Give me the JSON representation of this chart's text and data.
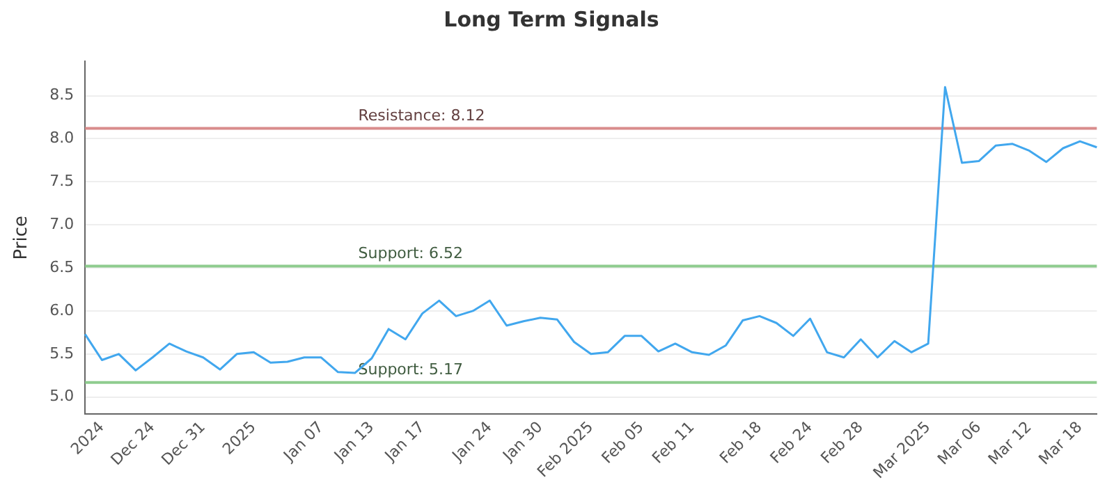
{
  "chart_data": {
    "type": "line",
    "title": "Long Term Signals",
    "ylabel": "Price",
    "categories": [
      null,
      "2024",
      null,
      null,
      "Dec 24",
      null,
      null,
      "Dec 31",
      null,
      null,
      "2025",
      null,
      null,
      null,
      "Jan 07",
      null,
      null,
      "Jan 13",
      null,
      null,
      "Jan 17",
      null,
      null,
      null,
      "Jan 24",
      null,
      null,
      "Jan 30",
      null,
      null,
      "Feb 2025",
      null,
      null,
      "Feb 05",
      null,
      null,
      "Feb 11",
      null,
      null,
      null,
      "Feb 18",
      null,
      null,
      "Feb 24",
      null,
      null,
      "Feb 28",
      null,
      null,
      null,
      "Mar 2025",
      null,
      null,
      "Mar 06",
      null,
      null,
      "Mar 12",
      null,
      null,
      "Mar 18",
      null
    ],
    "series": [
      {
        "color": "#41a7ee",
        "values": [
          5.73,
          5.43,
          5.5,
          5.31,
          5.46,
          5.62,
          5.53,
          5.46,
          5.32,
          5.5,
          5.52,
          5.4,
          5.41,
          5.46,
          5.46,
          5.29,
          5.28,
          5.45,
          5.79,
          5.67,
          5.97,
          6.12,
          5.94,
          6.0,
          6.12,
          5.83,
          5.88,
          5.92,
          5.9,
          5.64,
          5.5,
          5.52,
          5.71,
          5.71,
          5.53,
          5.62,
          5.52,
          5.49,
          5.6,
          5.89,
          5.94,
          5.86,
          5.71,
          5.91,
          5.52,
          5.46,
          5.67,
          5.46,
          5.65,
          5.52,
          5.62,
          8.6,
          7.72,
          7.74,
          7.92,
          7.94,
          7.86,
          7.73,
          7.89,
          7.97,
          7.9
        ]
      }
    ],
    "ylim": [
      4.8,
      8.9
    ],
    "yticks": [
      {
        "value": 5,
        "label": "5.0"
      },
      {
        "value": 5.5,
        "label": "5.5"
      },
      {
        "value": 6,
        "label": "6.0"
      },
      {
        "value": 6.5,
        "label": "6.5"
      },
      {
        "value": 7,
        "label": "7.0"
      },
      {
        "value": 7.5,
        "label": "7.5"
      },
      {
        "value": 8,
        "label": "8.0"
      },
      {
        "value": 8.5,
        "label": "8.5"
      }
    ],
    "ref_lines": [
      {
        "axis": "y",
        "value": 8.12,
        "label": "Resistance: 8.12",
        "color": "#d98c8c"
      },
      {
        "axis": "y",
        "value": 6.52,
        "label": "Support: 6.52",
        "color": "#8fcc8f"
      },
      {
        "axis": "y",
        "value": 5.17,
        "label": "Support: 5.17",
        "color": "#8fcc8f"
      }
    ],
    "grid": "y",
    "legend": false,
    "marker": "none",
    "line_style": "solid"
  }
}
